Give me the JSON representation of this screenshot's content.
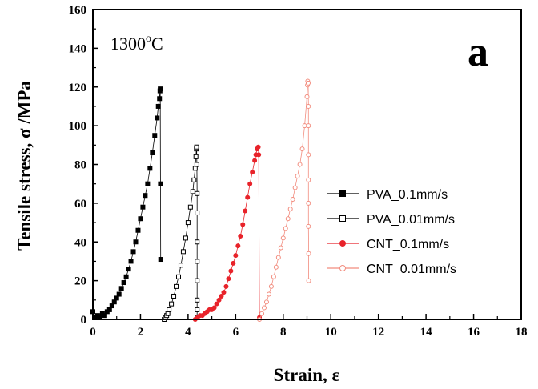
{
  "chart_data": {
    "type": "scatter",
    "xlabel": "Strain, ε",
    "ylabel": "Tensile stress, σ /MPa",
    "xlim": [
      0,
      18
    ],
    "ylim": [
      0,
      160
    ],
    "xticks": [
      0,
      2,
      4,
      6,
      8,
      10,
      12,
      14,
      16,
      18
    ],
    "yticks": [
      0,
      20,
      40,
      60,
      80,
      100,
      120,
      140,
      160
    ],
    "grid": false,
    "legend_position": "center-right",
    "annotation_base": "1300",
    "annotation_sup": "o",
    "annotation_unit": "C",
    "panel_label": "a",
    "series": [
      {
        "name": "PVA_0.1mm/s",
        "color": "#000000",
        "marker": "filled-square",
        "x": [
          0.0,
          0.1,
          0.2,
          0.3,
          0.4,
          0.5,
          0.6,
          0.7,
          0.8,
          0.9,
          1.0,
          1.1,
          1.2,
          1.3,
          1.4,
          1.5,
          1.6,
          1.7,
          1.8,
          1.9,
          2.0,
          2.1,
          2.2,
          2.3,
          2.4,
          2.5,
          2.6,
          2.7,
          2.75,
          2.8,
          2.82,
          2.83,
          2.84,
          2.85
        ],
        "y": [
          4,
          1,
          2,
          1,
          3,
          2,
          4,
          5,
          7,
          9,
          11,
          13,
          16,
          19,
          22,
          26,
          30,
          35,
          40,
          46,
          52,
          58,
          64,
          70,
          78,
          86,
          95,
          104,
          110,
          114,
          118,
          119,
          70,
          31
        ]
      },
      {
        "name": "PVA_0.01mm/s",
        "color": "#000000",
        "marker": "open-square",
        "x": [
          3.0,
          3.05,
          3.1,
          3.15,
          3.2,
          3.3,
          3.4,
          3.5,
          3.6,
          3.7,
          3.8,
          3.9,
          4.0,
          4.1,
          4.2,
          4.25,
          4.3,
          4.33,
          4.35,
          4.36,
          4.37,
          4.38,
          4.38,
          4.38,
          4.38,
          4.38,
          4.38,
          4.38,
          4.38
        ],
        "y": [
          0,
          1,
          2,
          3,
          5,
          8,
          12,
          17,
          22,
          28,
          35,
          42,
          50,
          58,
          66,
          72,
          78,
          84,
          88,
          89,
          80,
          65,
          55,
          40,
          30,
          20,
          10,
          5,
          1
        ]
      },
      {
        "name": "CNT_0.1mm/s",
        "color": "#e8232a",
        "marker": "filled-circle",
        "x": [
          4.3,
          4.4,
          4.5,
          4.6,
          4.7,
          4.8,
          4.9,
          5.0,
          5.1,
          5.2,
          5.3,
          5.4,
          5.5,
          5.6,
          5.7,
          5.8,
          5.9,
          6.0,
          6.1,
          6.2,
          6.3,
          6.4,
          6.5,
          6.6,
          6.7,
          6.8,
          6.85,
          6.9,
          6.95,
          6.97,
          7.0
        ],
        "y": [
          0,
          1,
          2,
          2,
          3,
          4,
          5,
          5,
          6,
          8,
          10,
          12,
          14,
          17,
          21,
          25,
          29,
          33,
          38,
          43,
          49,
          56,
          63,
          70,
          76,
          82,
          85,
          88,
          89,
          85,
          1
        ]
      },
      {
        "name": "CNT_0.01mm/s",
        "color": "#f28c7e",
        "marker": "open-circle",
        "x": [
          7.0,
          7.1,
          7.2,
          7.3,
          7.4,
          7.5,
          7.6,
          7.7,
          7.8,
          7.9,
          8.0,
          8.1,
          8.2,
          8.3,
          8.4,
          8.5,
          8.6,
          8.7,
          8.8,
          8.9,
          9.0,
          9.02,
          9.03,
          9.05,
          9.06,
          9.06,
          9.06,
          9.06,
          9.06,
          9.06,
          9.07,
          9.07
        ],
        "y": [
          0,
          3,
          6,
          9,
          13,
          17,
          22,
          27,
          32,
          37,
          42,
          47,
          52,
          57,
          62,
          68,
          74,
          80,
          88,
          100,
          115,
          121,
          123,
          122,
          110,
          100,
          85,
          72,
          60,
          48,
          34,
          20
        ]
      }
    ]
  }
}
